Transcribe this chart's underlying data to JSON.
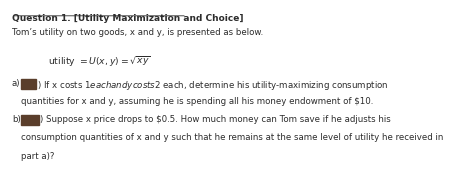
{
  "title": "Question 1. [Utility Maximization and Choice]",
  "intro": "Tom’s utility on two goods, x and y, is presented as below.",
  "part_a_tag": "a)",
  "part_a_after": ") If x costs $1 each and y costs $2 each, determine his utility-maximizing consumption",
  "part_a_line2": "quantities for x and y, assuming he is spending all his money endowment of $10.",
  "part_b_tag": "b)",
  "part_b_after": ") Suppose x price drops to $0.5. How much money can Tom save if he adjusts his",
  "part_b_line2": "consumption quantities of x and y such that he remains at the same level of utility he received in",
  "part_b_line3": "part a)?",
  "bg_color": "#ffffff",
  "text_color": "#2c2c2c",
  "redact_color": "#5a3e2b",
  "font_size": 6.2,
  "title_font_size": 6.5
}
